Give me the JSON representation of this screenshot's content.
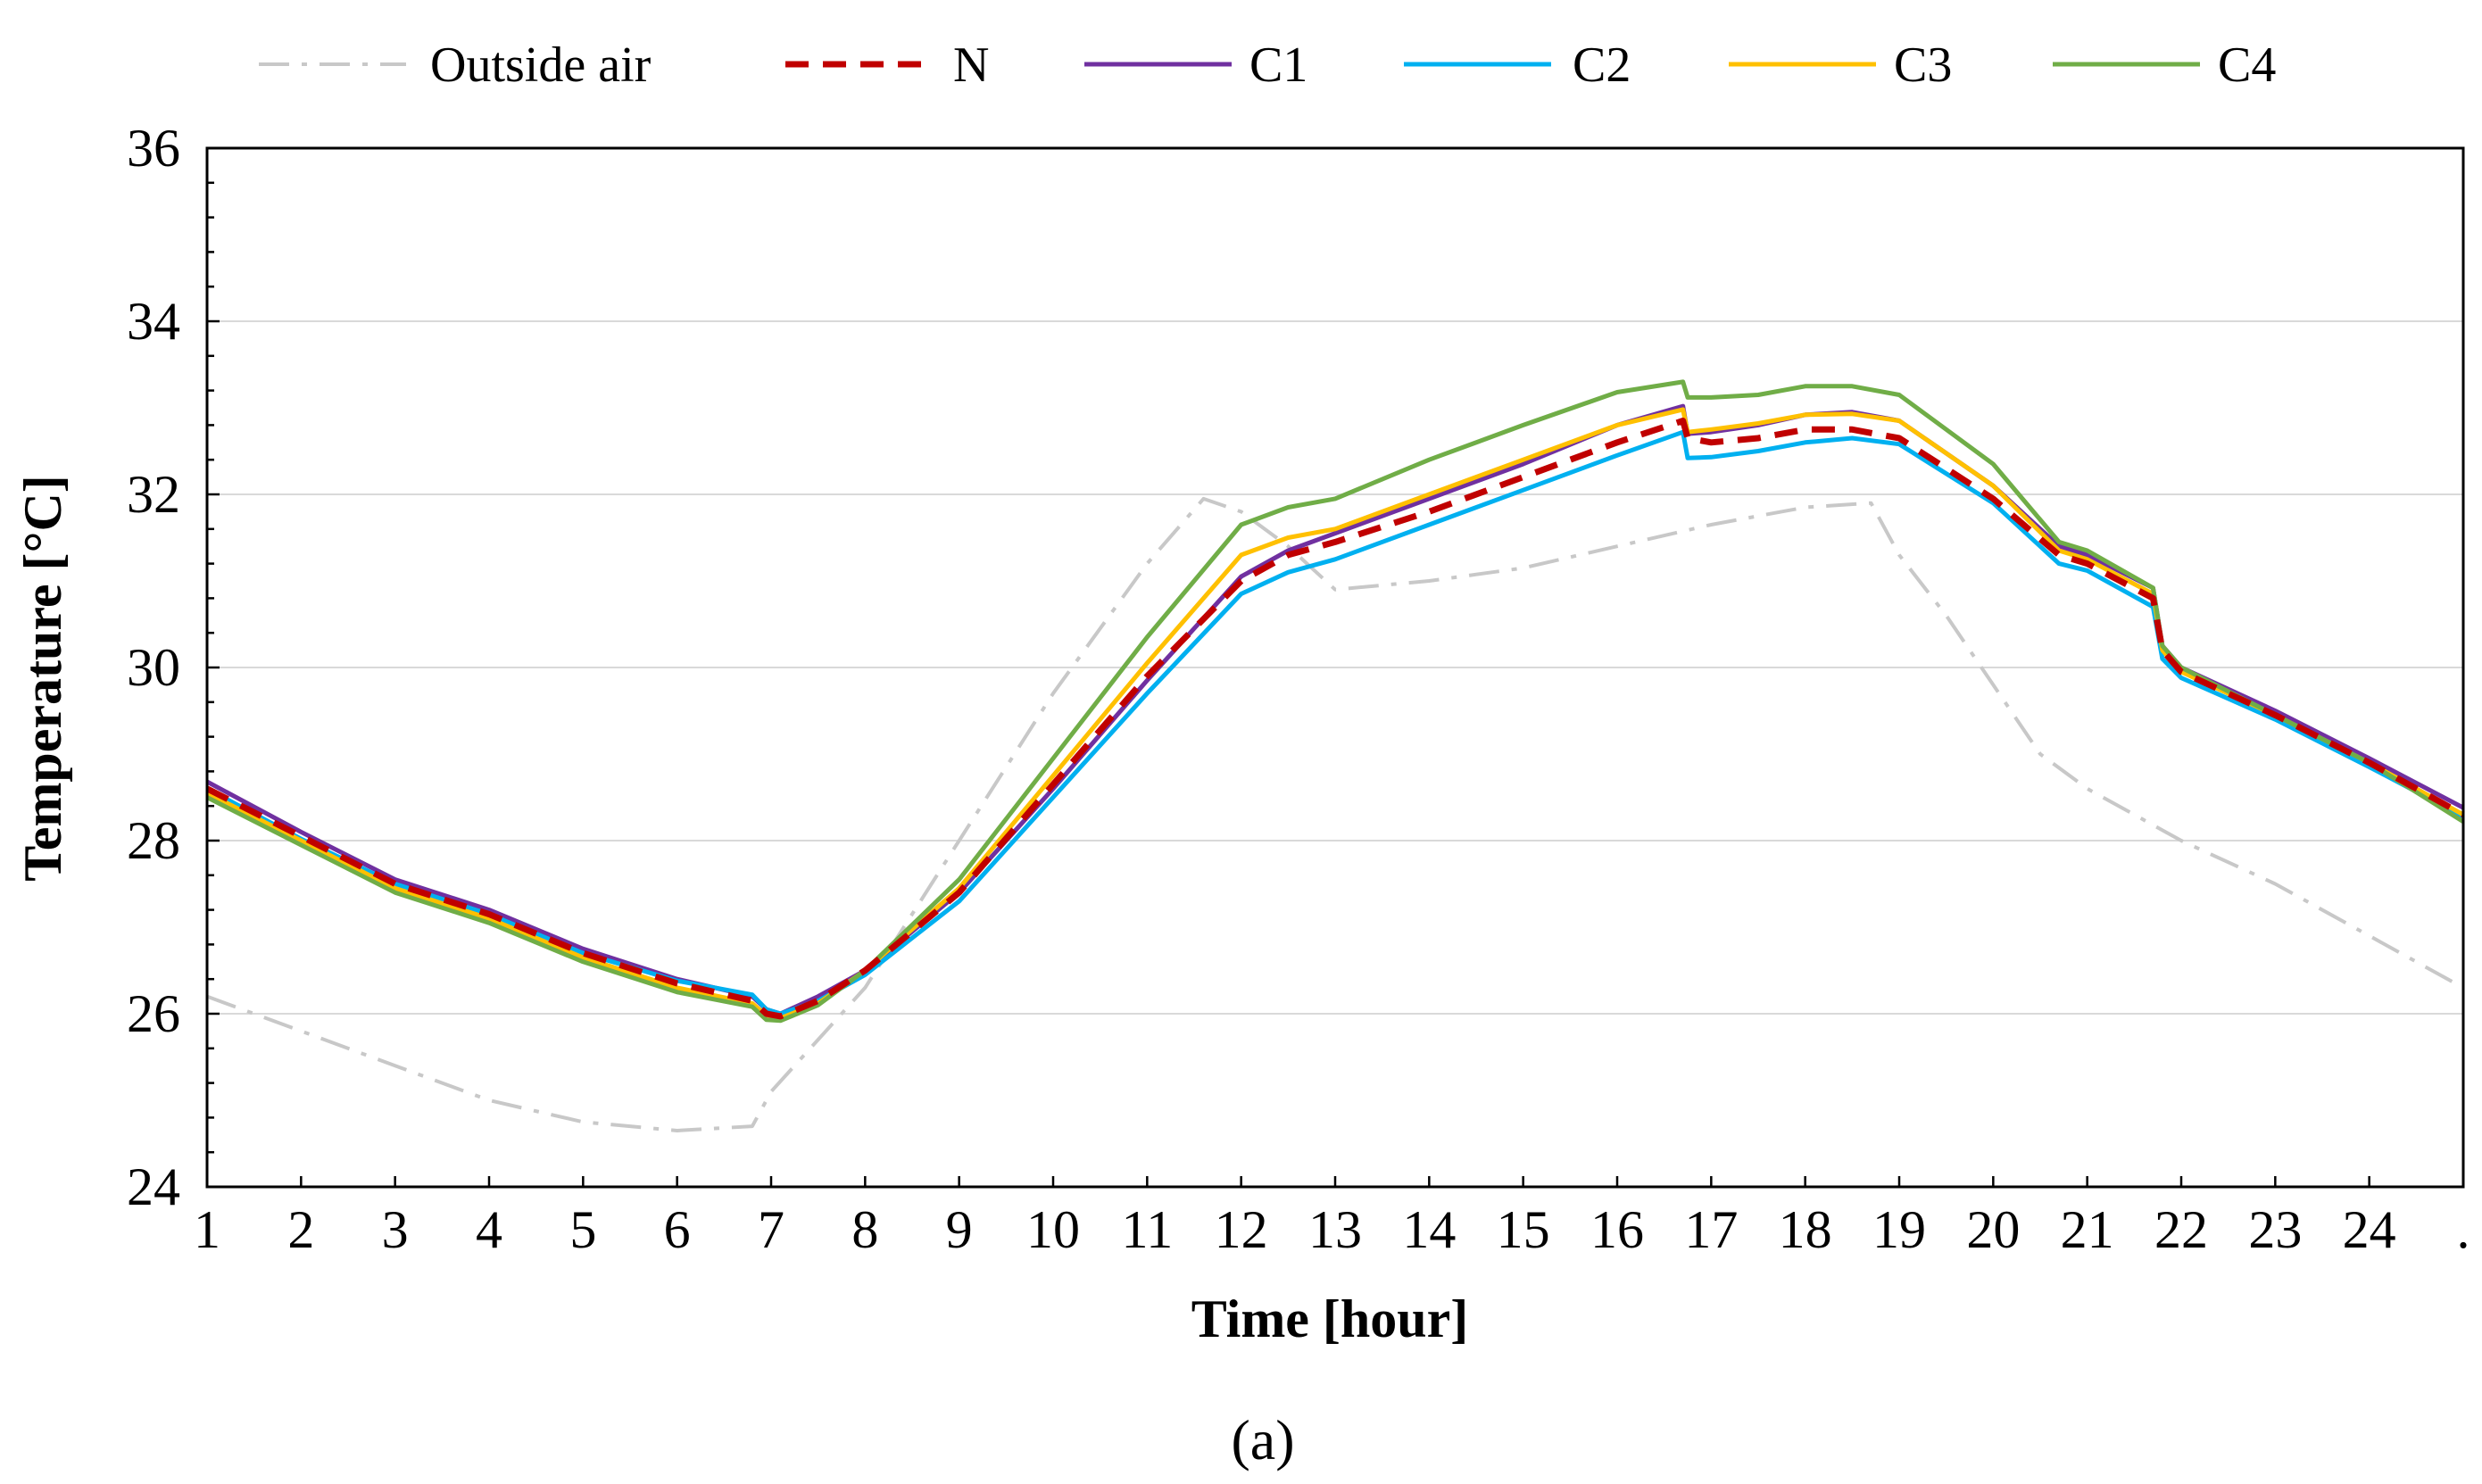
{
  "chart_data": {
    "type": "line",
    "title": "",
    "xlabel": "Time [hour]",
    "ylabel": "Temperature [°C]",
    "caption": "(a)",
    "xlim": [
      1,
      25
    ],
    "ylim": [
      24,
      36
    ],
    "y_ticks": [
      24,
      26,
      28,
      30,
      32,
      34,
      36
    ],
    "x_tick_labels": [
      "1",
      "2",
      "3",
      "4",
      "5",
      "6",
      "7",
      "8",
      "9",
      "10",
      "11",
      "12",
      "13",
      "14",
      "15",
      "16",
      "17",
      "18",
      "19",
      "20",
      "21",
      "22",
      "23",
      "24",
      "."
    ],
    "grid": true,
    "legend_position": "top",
    "series": [
      {
        "name": "Outside air",
        "color": "#c8c8c8",
        "style": "dash-dot",
        "x": [
          1,
          2,
          3,
          4,
          5,
          6,
          6.8,
          7,
          8,
          9,
          10,
          11,
          11.6,
          12,
          12.5,
          13,
          14,
          15,
          16,
          17,
          18,
          18.7,
          19,
          19.5,
          20,
          20.5,
          21,
          22,
          23,
          24,
          25
        ],
        "y": [
          26.2,
          25.8,
          25.4,
          25.0,
          24.75,
          24.65,
          24.7,
          25.1,
          26.3,
          28.0,
          29.7,
          31.2,
          31.95,
          31.8,
          31.4,
          30.9,
          31.0,
          31.15,
          31.4,
          31.65,
          31.85,
          31.9,
          31.3,
          30.6,
          29.8,
          29.0,
          28.6,
          28.0,
          27.5,
          26.9,
          26.3
        ]
      },
      {
        "name": "N",
        "color": "#c00000",
        "style": "dash",
        "x": [
          1,
          2,
          3,
          4,
          5,
          6,
          6.8,
          6.95,
          7.1,
          7.5,
          8,
          9,
          10,
          11,
          12,
          12.5,
          13,
          14,
          15,
          16,
          16.7,
          16.75,
          17,
          17.5,
          18,
          18.5,
          19,
          20,
          20.7,
          21,
          21.7,
          21.8,
          22,
          23,
          24,
          25
        ],
        "y": [
          28.6,
          28.05,
          27.5,
          27.15,
          26.7,
          26.35,
          26.15,
          26.0,
          25.97,
          26.15,
          26.5,
          27.4,
          28.65,
          29.9,
          31.0,
          31.3,
          31.45,
          31.8,
          32.2,
          32.6,
          32.85,
          32.65,
          32.6,
          32.65,
          32.75,
          32.75,
          32.65,
          31.95,
          31.3,
          31.2,
          30.8,
          30.2,
          29.95,
          29.45,
          28.9,
          28.3
        ]
      },
      {
        "name": "C1",
        "color": "#7030a0",
        "style": "solid",
        "x": [
          1,
          2,
          3,
          4,
          5,
          6,
          6.8,
          6.95,
          7.1,
          7.5,
          8,
          9,
          10,
          11,
          12,
          12.5,
          13,
          14,
          15,
          16,
          16.7,
          16.75,
          17,
          17.5,
          18,
          18.5,
          19,
          20,
          20.7,
          21,
          21.7,
          21.8,
          22,
          23,
          24,
          25
        ],
        "y": [
          28.68,
          28.1,
          27.55,
          27.2,
          26.75,
          26.4,
          26.2,
          26.05,
          26.0,
          26.2,
          26.5,
          27.4,
          28.6,
          29.85,
          31.05,
          31.35,
          31.55,
          31.95,
          32.35,
          32.8,
          33.02,
          32.7,
          32.72,
          32.8,
          32.92,
          32.95,
          32.85,
          32.1,
          31.4,
          31.3,
          30.92,
          30.25,
          30.0,
          29.5,
          28.95,
          28.38
        ]
      },
      {
        "name": "C2",
        "color": "#00b0f0",
        "style": "solid",
        "x": [
          1,
          2,
          3,
          4,
          5,
          6,
          6.8,
          6.95,
          7.1,
          7.5,
          8,
          9,
          10,
          11,
          12,
          12.5,
          13,
          14,
          15,
          16,
          16.7,
          16.75,
          17,
          17.5,
          18,
          18.5,
          19,
          20,
          20.7,
          21,
          21.7,
          21.8,
          22,
          23,
          24,
          25
        ],
        "y": [
          28.6,
          28.02,
          27.5,
          27.15,
          26.7,
          26.38,
          26.22,
          26.05,
          26.0,
          26.15,
          26.45,
          27.3,
          28.5,
          29.7,
          30.85,
          31.1,
          31.25,
          31.65,
          32.05,
          32.45,
          32.72,
          32.42,
          32.43,
          32.5,
          32.6,
          32.65,
          32.58,
          31.9,
          31.2,
          31.12,
          30.7,
          30.1,
          29.88,
          29.4,
          28.85,
          28.28
        ]
      },
      {
        "name": "C3",
        "color": "#ffc000",
        "style": "solid",
        "x": [
          1,
          2,
          3,
          4,
          5,
          6,
          6.8,
          6.95,
          7.1,
          7.5,
          8,
          9,
          10,
          11,
          12,
          12.5,
          13,
          14,
          15,
          16,
          16.7,
          16.75,
          17,
          17.5,
          18,
          18.5,
          19,
          20,
          20.7,
          21,
          21.7,
          21.8,
          22,
          23,
          24,
          25
        ],
        "y": [
          28.55,
          28.0,
          27.45,
          27.1,
          26.65,
          26.3,
          26.12,
          25.98,
          25.95,
          26.12,
          26.5,
          27.45,
          28.75,
          30.05,
          31.3,
          31.5,
          31.6,
          32.0,
          32.4,
          32.8,
          32.98,
          32.72,
          32.75,
          32.82,
          32.92,
          32.93,
          32.85,
          32.1,
          31.35,
          31.25,
          30.85,
          30.2,
          29.95,
          29.45,
          28.9,
          28.3
        ]
      },
      {
        "name": "C4",
        "color": "#70ad47",
        "style": "solid",
        "x": [
          1,
          2,
          3,
          4,
          5,
          6,
          6.8,
          6.95,
          7.1,
          7.5,
          8,
          9,
          10,
          11,
          12,
          12.5,
          13,
          14,
          15,
          16,
          16.7,
          16.75,
          17,
          17.5,
          18,
          18.5,
          19,
          20,
          20.7,
          21,
          21.7,
          21.8,
          22,
          23,
          24,
          25
        ],
        "y": [
          28.5,
          27.95,
          27.4,
          27.05,
          26.6,
          26.25,
          26.08,
          25.93,
          25.92,
          26.1,
          26.5,
          27.55,
          28.95,
          30.35,
          31.65,
          31.85,
          31.95,
          32.4,
          32.8,
          33.18,
          33.3,
          33.12,
          33.12,
          33.15,
          33.25,
          33.25,
          33.15,
          32.35,
          31.45,
          31.35,
          30.92,
          30.25,
          30.0,
          29.45,
          28.9,
          28.22
        ]
      }
    ]
  }
}
